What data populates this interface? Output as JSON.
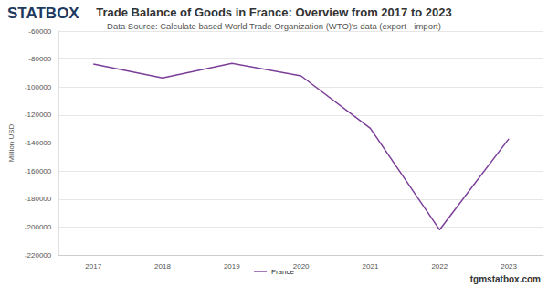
{
  "chart_data": {
    "type": "line",
    "title": "Trade Balance of Goods in France: Overview from 2017 to 2023",
    "subtitle": "Data Source: Calculate based World Trade Organization (WTO)'s data (export - import)",
    "y_label": "Million USD",
    "annotations": [
      "STATBOX",
      "tgmstatbox.com"
    ],
    "categories": [
      "2017",
      "2018",
      "2019",
      "2020",
      "2021",
      "2022",
      "2023"
    ],
    "series": [
      {
        "name": "France",
        "color": "#7b3f99",
        "values": [
          -83500,
          -93500,
          -83000,
          -92000,
          -129500,
          -202000,
          -137000
        ]
      }
    ],
    "ylim": [
      -220000,
      -60000
    ],
    "yticks": [
      -220000,
      -200000,
      -180000,
      -160000,
      -140000,
      -120000,
      -100000,
      -80000,
      -60000
    ],
    "grid": true,
    "legend": "bottom"
  }
}
